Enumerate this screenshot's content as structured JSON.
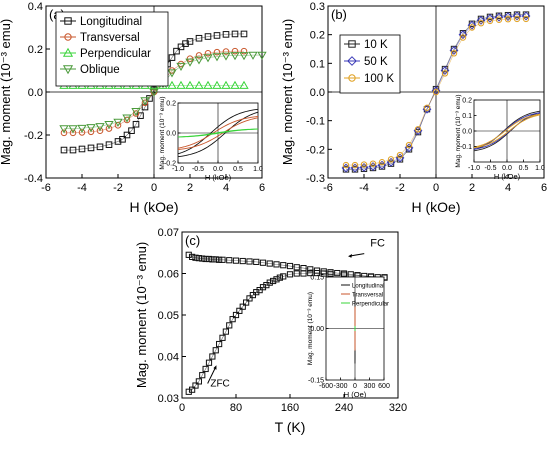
{
  "figure": {
    "panels": [
      {
        "label": "(a)",
        "xlabel": "H (kOe)",
        "ylabel": "Mag. moment (10⁻³ emu)",
        "xlim": [
          -6,
          6
        ],
        "ylim": [
          -0.4,
          0.4
        ],
        "xticks": [
          -6,
          -4,
          -2,
          0,
          2,
          4,
          6
        ],
        "yticks": [
          -0.4,
          -0.2,
          0.0,
          0.2,
          0.4
        ],
        "ytick_labels": [
          "-0.4",
          "-0.2",
          "0.0",
          "0.2",
          "0.4"
        ],
        "legend_position": "top-left",
        "series": [
          {
            "name": "Longitudinal",
            "color": "#111111",
            "marker": "square",
            "x": [
              -5,
              -4.5,
              -4,
              -3.5,
              -3,
              -2.5,
              -2,
              -1.75,
              -1.5,
              -1.25,
              -1,
              -0.75,
              -0.5,
              -0.25,
              0,
              0.25,
              0.5,
              0.75,
              1,
              1.25,
              1.5,
              1.75,
              2,
              2.5,
              3,
              3.5,
              4,
              4.5,
              5
            ],
            "y": [
              -0.27,
              -0.27,
              -0.265,
              -0.26,
              -0.255,
              -0.245,
              -0.23,
              -0.22,
              -0.2,
              -0.18,
              -0.15,
              -0.11,
              -0.07,
              -0.03,
              0.01,
              0.05,
              0.09,
              0.13,
              0.16,
              0.19,
              0.21,
              0.225,
              0.235,
              0.25,
              0.258,
              0.263,
              0.268,
              0.27,
              0.27
            ]
          },
          {
            "name": "Transversal",
            "color": "#c8562b",
            "marker": "circle",
            "x": [
              -5,
              -4.5,
              -4,
              -3.5,
              -3,
              -2.5,
              -2,
              -1.5,
              -1,
              -0.5,
              0,
              0.5,
              1,
              1.5,
              2,
              2.5,
              3,
              3.5,
              4,
              4.5,
              5
            ],
            "y": [
              -0.19,
              -0.19,
              -0.188,
              -0.185,
              -0.18,
              -0.17,
              -0.155,
              -0.13,
              -0.1,
              -0.05,
              0,
              0.05,
              0.1,
              0.13,
              0.155,
              0.17,
              0.18,
              0.185,
              0.188,
              0.19,
              0.19
            ]
          },
          {
            "name": "Perpendicular",
            "color": "#39d43a",
            "marker": "triangle-up",
            "x": [
              -5,
              -4.5,
              -4,
              -3.5,
              -3,
              -2.5,
              -2,
              -1.5,
              -1,
              -0.5,
              0,
              0.5,
              1,
              1.5,
              2,
              2.5,
              3,
              3.5,
              4,
              4.5,
              5
            ],
            "y": [
              0.03,
              0.03,
              0.03,
              0.03,
              0.03,
              0.03,
              0.03,
              0.03,
              0.03,
              0.03,
              0.03,
              0.03,
              0.03,
              0.03,
              0.03,
              0.03,
              0.03,
              0.03,
              0.03,
              0.03,
              0.03
            ]
          },
          {
            "name": "Oblique",
            "color": "#4a9a3a",
            "marker": "triangle-down",
            "x": [
              -5,
              -4.5,
              -4,
              -3.5,
              -3,
              -2.5,
              -2,
              -1.5,
              -1,
              -0.5,
              0,
              0.5,
              1,
              1.5,
              2,
              2.5,
              3,
              3.5,
              4,
              4.5,
              5,
              5.5,
              6
            ],
            "y": [
              -0.17,
              -0.17,
              -0.168,
              -0.165,
              -0.16,
              -0.15,
              -0.14,
              -0.12,
              -0.09,
              -0.04,
              0,
              0.04,
              0.09,
              0.12,
              0.14,
              0.15,
              0.16,
              0.165,
              0.168,
              0.17,
              0.17,
              0.172,
              0.172
            ]
          }
        ],
        "inset": {
          "xlabel": "H (kOe)",
          "ylabel": "Mag. moment (10⁻³ emu)",
          "xlim": [
            -1.0,
            1.0
          ],
          "ylim": [
            -0.2,
            0.2
          ],
          "xticks": [
            -1.0,
            -0.5,
            0.0,
            0.5,
            1.0
          ],
          "xtick_labels": [
            "-1.0",
            "-0.5",
            "0.0",
            "0.5",
            "1.0"
          ],
          "yticks": [
            -0.2,
            0.0,
            0.2
          ],
          "ytick_labels": [
            "-0.2",
            "0.0",
            "0.2"
          ]
        }
      },
      {
        "label": "(b)",
        "xlabel": "H (kOe)",
        "ylabel": "Mag. moment (10⁻³ emu)",
        "xlim": [
          -6,
          6
        ],
        "ylim": [
          -0.3,
          0.3
        ],
        "xticks": [
          -6,
          -4,
          -2,
          0,
          2,
          4,
          6
        ],
        "yticks": [
          -0.3,
          -0.2,
          -0.1,
          0.0,
          0.1,
          0.2,
          0.3
        ],
        "ytick_labels": [
          "-0.3",
          "-0.2",
          "-0.1",
          "0.0",
          "0.1",
          "0.2",
          "0.3"
        ],
        "legend_position": "top-left",
        "series": [
          {
            "name": "10 K",
            "color": "#222222",
            "marker": "square",
            "x": [
              -5,
              -4.5,
              -4,
              -3.5,
              -3,
              -2.5,
              -2,
              -1.5,
              -1,
              -0.5,
              0,
              0.5,
              1,
              1.5,
              2,
              2.5,
              3,
              3.5,
              4,
              4.5,
              5
            ],
            "y": [
              -0.27,
              -0.27,
              -0.268,
              -0.265,
              -0.26,
              -0.25,
              -0.235,
              -0.2,
              -0.14,
              -0.06,
              0.01,
              0.08,
              0.15,
              0.205,
              0.238,
              0.255,
              0.262,
              0.266,
              0.268,
              0.27,
              0.27
            ]
          },
          {
            "name": "50 K",
            "color": "#3a3ab8",
            "marker": "diamond",
            "x": [
              -5,
              -4.5,
              -4,
              -3.5,
              -3,
              -2.5,
              -2,
              -1.5,
              -1,
              -0.5,
              0,
              0.5,
              1,
              1.5,
              2,
              2.5,
              3,
              3.5,
              4,
              4.5,
              5
            ],
            "y": [
              -0.265,
              -0.265,
              -0.263,
              -0.26,
              -0.255,
              -0.245,
              -0.23,
              -0.195,
              -0.135,
              -0.06,
              0.005,
              0.075,
              0.145,
              0.2,
              0.233,
              0.25,
              0.257,
              0.261,
              0.263,
              0.265,
              0.265
            ]
          },
          {
            "name": "100 K",
            "color": "#e0a020",
            "marker": "circle",
            "x": [
              -5,
              -4.5,
              -4,
              -3.5,
              -3,
              -2.5,
              -2,
              -1.5,
              -1,
              -0.5,
              0,
              0.5,
              1,
              1.5,
              2,
              2.5,
              3,
              3.5,
              4,
              4.5,
              5
            ],
            "y": [
              -0.255,
              -0.255,
              -0.253,
              -0.25,
              -0.245,
              -0.235,
              -0.22,
              -0.185,
              -0.13,
              -0.055,
              0.0,
              0.065,
              0.135,
              0.19,
              0.225,
              0.24,
              0.248,
              0.252,
              0.254,
              0.255,
              0.255
            ]
          }
        ],
        "inset": {
          "xlabel": "H (kOe)",
          "ylabel": "Mag. moment (10⁻³ emu)",
          "xlim": [
            -1.0,
            1.0
          ],
          "ylim": [
            -0.2,
            0.2
          ],
          "xticks": [
            -1.0,
            -0.5,
            0.0,
            0.5,
            1.0
          ],
          "xtick_labels": [
            "-1.0",
            "-0.5",
            "0.0",
            "0.5",
            "1.0"
          ],
          "yticks": [
            -0.1,
            0.0,
            0.1,
            0.2
          ],
          "ytick_labels": [
            "-0.1",
            "0.0",
            "0.1",
            "0.2"
          ]
        }
      },
      {
        "label": "(c)",
        "xlabel": "T (K)",
        "ylabel": "Mag. moment (10⁻³ emu)",
        "xlim": [
          0,
          320
        ],
        "ylim": [
          0.03,
          0.07
        ],
        "xticks": [
          0,
          80,
          160,
          240,
          320
        ],
        "yticks": [
          0.03,
          0.04,
          0.05,
          0.06,
          0.07
        ],
        "ytick_labels": [
          "0.03",
          "0.04",
          "0.05",
          "0.06",
          "0.07"
        ],
        "annotations": {
          "fc": "FC",
          "zfc": "ZFC"
        },
        "series": [
          {
            "name": "FC",
            "color": "#111111",
            "marker": "square",
            "x": [
              10,
              15,
              20,
              25,
              30,
              35,
              40,
              45,
              50,
              55,
              60,
              70,
              80,
              90,
              100,
              110,
              120,
              130,
              140,
              150,
              160,
              170,
              180,
              190,
              200,
              210,
              220,
              230,
              240,
              250,
              260,
              270,
              280,
              290,
              300
            ],
            "y": [
              0.0645,
              0.064,
              0.0638,
              0.0637,
              0.0636,
              0.0635,
              0.0635,
              0.0634,
              0.0634,
              0.0633,
              0.0633,
              0.0632,
              0.0631,
              0.063,
              0.0629,
              0.0628,
              0.0626,
              0.0624,
              0.0622,
              0.062,
              0.0618,
              0.0615,
              0.0613,
              0.061,
              0.0607,
              0.0605,
              0.0603,
              0.0601,
              0.06,
              0.0598,
              0.0596,
              0.0594,
              0.0592,
              0.0591,
              0.059
            ]
          },
          {
            "name": "ZFC",
            "color": "#111111",
            "marker": "square",
            "x": [
              10,
              15,
              20,
              25,
              30,
              35,
              40,
              45,
              50,
              55,
              60,
              65,
              70,
              75,
              80,
              85,
              90,
              95,
              100,
              105,
              110,
              115,
              120,
              125,
              130,
              135,
              140,
              145,
              150,
              160,
              170,
              180,
              190,
              200,
              210,
              220,
              240,
              260,
              280,
              300
            ],
            "y": [
              0.0315,
              0.032,
              0.033,
              0.034,
              0.0355,
              0.037,
              0.0385,
              0.04,
              0.0415,
              0.043,
              0.0445,
              0.046,
              0.0475,
              0.049,
              0.05,
              0.051,
              0.052,
              0.053,
              0.054,
              0.0548,
              0.0555,
              0.056,
              0.0567,
              0.0572,
              0.0578,
              0.0582,
              0.0586,
              0.059,
              0.0593,
              0.0598,
              0.06,
              0.06,
              0.0601,
              0.0601,
              0.06,
              0.0599,
              0.0597,
              0.0595,
              0.0593,
              0.0591
            ]
          }
        ],
        "inset": {
          "xlabel": "H (Oe)",
          "ylabel": "Mag. moment (10⁻³ emu)",
          "xlim": [
            -600,
            600
          ],
          "ylim": [
            -0.15,
            0.15
          ],
          "xticks": [
            -600,
            -300,
            0,
            300,
            600
          ],
          "yticks": [
            -0.15,
            0.0,
            0.15
          ],
          "ytick_labels": [
            "-0.15",
            "0.00",
            "0.15"
          ],
          "legend": [
            "Longitudinal",
            "Transversal",
            "Perpendicular"
          ],
          "legend_colors": [
            "#111111",
            "#c8562b",
            "#39d43a"
          ]
        }
      }
    ]
  },
  "chart_data": [
    {
      "type": "scatter",
      "title": "(a)",
      "xlabel": "H (kOe)",
      "ylabel": "Mag. moment (10⁻³ emu)",
      "xlim": [
        -6,
        6
      ],
      "ylim": [
        -0.4,
        0.4
      ],
      "series": [
        {
          "name": "Longitudinal",
          "saturation": 0.27
        },
        {
          "name": "Transversal",
          "saturation": 0.19
        },
        {
          "name": "Perpendicular",
          "saturation": 0.03
        },
        {
          "name": "Oblique",
          "saturation": 0.17
        }
      ]
    },
    {
      "type": "scatter",
      "title": "(b)",
      "xlabel": "H (kOe)",
      "ylabel": "Mag. moment (10⁻³ emu)",
      "xlim": [
        -6,
        6
      ],
      "ylim": [
        -0.3,
        0.3
      ],
      "series": [
        {
          "name": "10 K",
          "saturation": 0.27
        },
        {
          "name": "50 K",
          "saturation": 0.265
        },
        {
          "name": "100 K",
          "saturation": 0.255
        }
      ]
    },
    {
      "type": "scatter",
      "title": "(c)",
      "xlabel": "T (K)",
      "ylabel": "Mag. moment (10⁻³ emu)",
      "xlim": [
        0,
        320
      ],
      "ylim": [
        0.03,
        0.07
      ],
      "series": [
        {
          "name": "FC",
          "start": [
            10,
            0.0645
          ],
          "end": [
            300,
            0.059
          ]
        },
        {
          "name": "ZFC",
          "start": [
            10,
            0.0315
          ],
          "end": [
            300,
            0.0591
          ]
        }
      ]
    }
  ]
}
